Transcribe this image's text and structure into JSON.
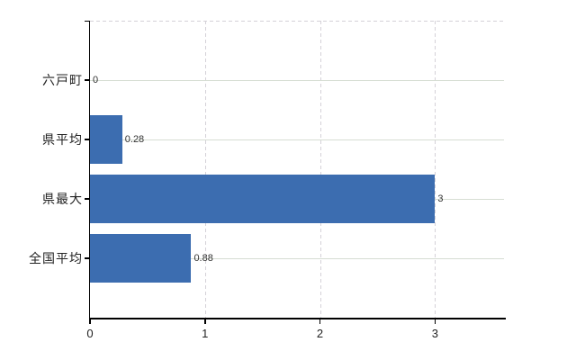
{
  "chart_data": {
    "type": "bar",
    "orientation": "horizontal",
    "title": "",
    "categories": [
      "六戸町",
      "県平均",
      "県最大",
      "全国平均"
    ],
    "values": [
      0,
      0.28,
      3,
      0.88
    ],
    "value_labels": [
      "0",
      "0.28",
      "3",
      "0.88"
    ],
    "xticks": [
      0,
      1,
      2,
      3
    ],
    "xtick_labels": [
      "0",
      "1",
      "2",
      "3"
    ],
    "xlim": [
      0,
      3.6
    ],
    "xlabel": "",
    "ylabel": "",
    "grid": true,
    "legend": false,
    "colors": {
      "bar": "#3c6db0",
      "grid_horizontal": "#d6ddd3",
      "grid_vertical": "#d4d1d8",
      "top_border": "#d4d1d8",
      "axis": "#000000",
      "category_label": "#222222",
      "value_label": "#333333",
      "tick_label": "#222222",
      "background": "#ffffff"
    }
  }
}
